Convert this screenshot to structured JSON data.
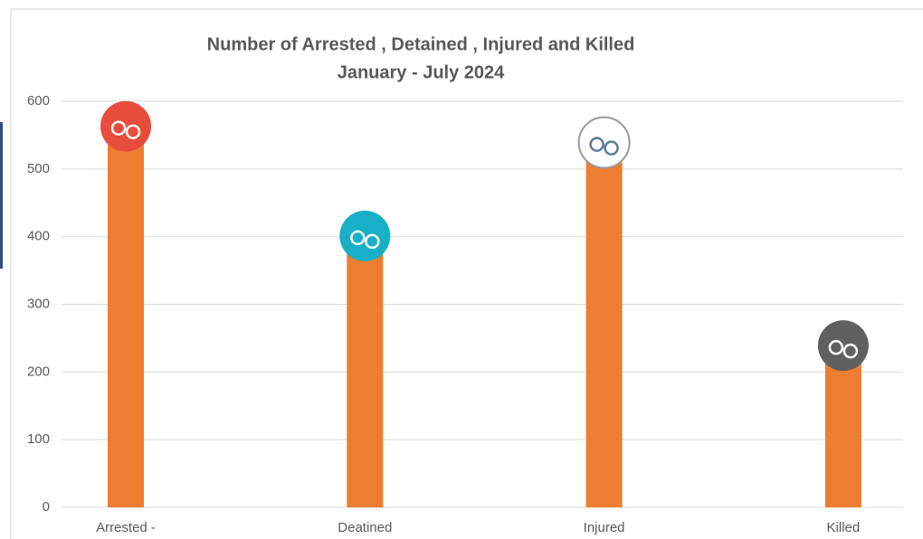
{
  "chart_data": {
    "type": "bar",
    "title": "Number of Arrested , Detained , Injured and Killed",
    "subtitle": "January - July 2024",
    "categories": [
      "Arrested -",
      "Deatined",
      "Injured",
      "Killed"
    ],
    "values": [
      563,
      401,
      539,
      239
    ],
    "color": "#ed7d31",
    "marker_colors": [
      "#e84c3d",
      "#17b0c6",
      "#ffffff",
      "#5f6062"
    ],
    "ylim": [
      0,
      600
    ],
    "yticks": [
      0,
      100,
      200,
      300,
      400,
      500,
      600
    ],
    "grid": true
  }
}
